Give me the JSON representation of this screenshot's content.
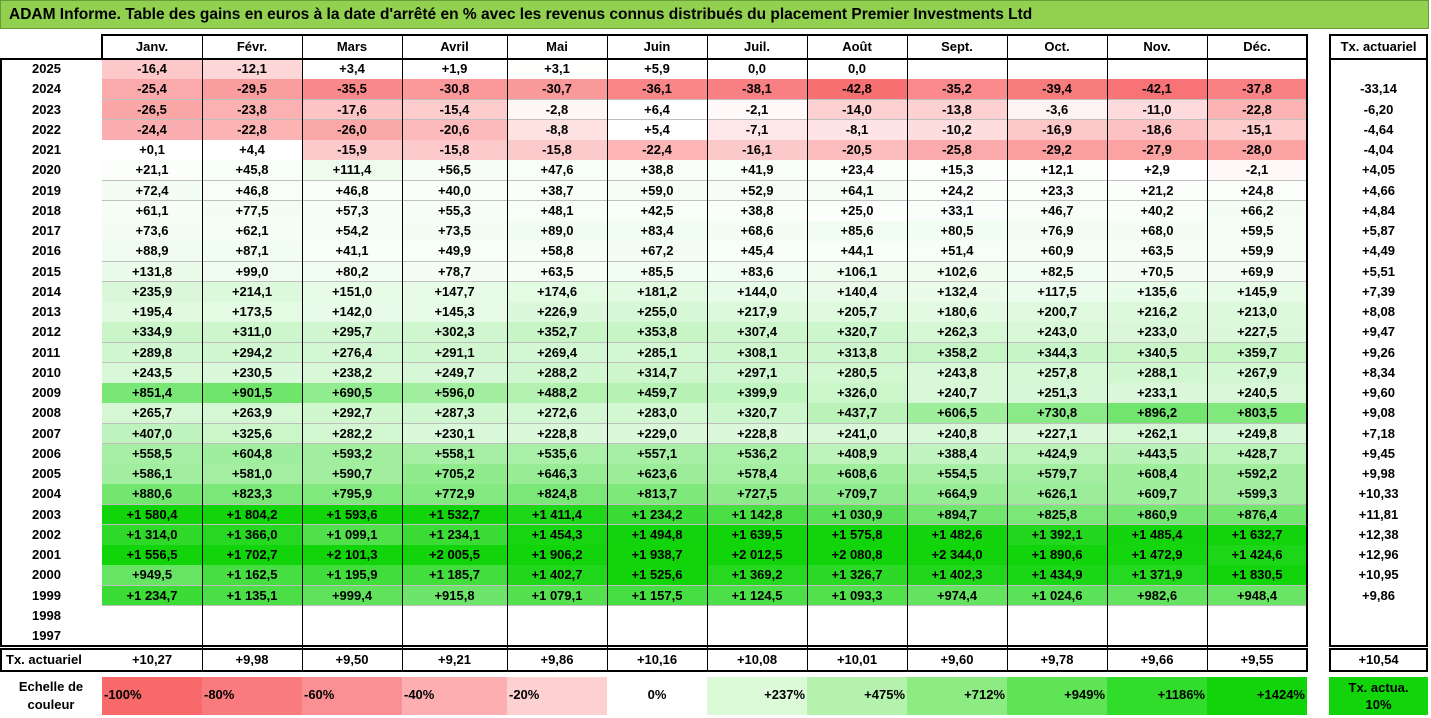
{
  "title": "ADAM Informe. Table des gains en euros à la date d'arrêté en % avec les revenus connus distribués du placement Premier Investments Ltd",
  "chart_data": {
    "type": "table",
    "columns": [
      "Janv.",
      "Févr.",
      "Mars",
      "Avril",
      "Mai",
      "Juin",
      "Juil.",
      "Août",
      "Sept.",
      "Oct.",
      "Nov.",
      "Déc."
    ],
    "rate_header": "Tx. actuariel",
    "rows": [
      {
        "year": "2025",
        "values": [
          "-16,4",
          "-12,1",
          "+3,4",
          "+1,9",
          "+3,1",
          "+5,9",
          "0,0",
          "0,0",
          "",
          "",
          "",
          ""
        ],
        "rate": ""
      },
      {
        "year": "2024",
        "values": [
          "-25,4",
          "-29,5",
          "-35,5",
          "-30,8",
          "-30,7",
          "-36,1",
          "-38,1",
          "-42,8",
          "-35,2",
          "-39,4",
          "-42,1",
          "-37,8"
        ],
        "rate": "-33,14"
      },
      {
        "year": "2023",
        "values": [
          "-26,5",
          "-23,8",
          "-17,6",
          "-15,4",
          "-2,8",
          "+6,4",
          "-2,1",
          "-14,0",
          "-13,8",
          "-3,6",
          "-11,0",
          "-22,8"
        ],
        "rate": "-6,20"
      },
      {
        "year": "2022",
        "values": [
          "-24,4",
          "-22,8",
          "-26,0",
          "-20,6",
          "-8,8",
          "+5,4",
          "-7,1",
          "-8,1",
          "-10,2",
          "-16,9",
          "-18,6",
          "-15,1"
        ],
        "rate": "-4,64"
      },
      {
        "year": "2021",
        "values": [
          "+0,1",
          "+4,4",
          "-15,9",
          "-15,8",
          "-15,8",
          "-22,4",
          "-16,1",
          "-20,5",
          "-25,8",
          "-29,2",
          "-27,9",
          "-28,0"
        ],
        "rate": "-4,04"
      },
      {
        "year": "2020",
        "values": [
          "+21,1",
          "+45,8",
          "+111,4",
          "+56,5",
          "+47,6",
          "+38,8",
          "+41,9",
          "+23,4",
          "+15,3",
          "+12,1",
          "+2,9",
          "-2,1"
        ],
        "rate": "+4,05"
      },
      {
        "year": "2019",
        "values": [
          "+72,4",
          "+46,8",
          "+46,8",
          "+40,0",
          "+38,7",
          "+59,0",
          "+52,9",
          "+64,1",
          "+24,2",
          "+23,3",
          "+21,2",
          "+24,8"
        ],
        "rate": "+4,66"
      },
      {
        "year": "2018",
        "values": [
          "+61,1",
          "+77,5",
          "+57,3",
          "+55,3",
          "+48,1",
          "+42,5",
          "+38,8",
          "+25,0",
          "+33,1",
          "+46,7",
          "+40,2",
          "+66,2"
        ],
        "rate": "+4,84"
      },
      {
        "year": "2017",
        "values": [
          "+73,6",
          "+62,1",
          "+54,2",
          "+73,5",
          "+89,0",
          "+83,4",
          "+68,6",
          "+85,6",
          "+80,5",
          "+76,9",
          "+68,0",
          "+59,5"
        ],
        "rate": "+5,87"
      },
      {
        "year": "2016",
        "values": [
          "+88,9",
          "+87,1",
          "+41,1",
          "+49,9",
          "+58,8",
          "+67,2",
          "+45,4",
          "+44,1",
          "+51,4",
          "+60,9",
          "+63,5",
          "+59,9"
        ],
        "rate": "+4,49"
      },
      {
        "year": "2015",
        "values": [
          "+131,8",
          "+99,0",
          "+80,2",
          "+78,7",
          "+63,5",
          "+85,5",
          "+83,6",
          "+106,1",
          "+102,6",
          "+82,5",
          "+70,5",
          "+69,9"
        ],
        "rate": "+5,51"
      },
      {
        "year": "2014",
        "values": [
          "+235,9",
          "+214,1",
          "+151,0",
          "+147,7",
          "+174,6",
          "+181,2",
          "+144,0",
          "+140,4",
          "+132,4",
          "+117,5",
          "+135,6",
          "+145,9"
        ],
        "rate": "+7,39"
      },
      {
        "year": "2013",
        "values": [
          "+195,4",
          "+173,5",
          "+142,0",
          "+145,3",
          "+226,9",
          "+255,0",
          "+217,9",
          "+205,7",
          "+180,6",
          "+200,7",
          "+216,2",
          "+213,0"
        ],
        "rate": "+8,08"
      },
      {
        "year": "2012",
        "values": [
          "+334,9",
          "+311,0",
          "+295,7",
          "+302,3",
          "+352,7",
          "+353,8",
          "+307,4",
          "+320,7",
          "+262,3",
          "+243,0",
          "+233,0",
          "+227,5"
        ],
        "rate": "+9,47"
      },
      {
        "year": "2011",
        "values": [
          "+289,8",
          "+294,2",
          "+276,4",
          "+291,1",
          "+269,4",
          "+285,1",
          "+308,1",
          "+313,8",
          "+358,2",
          "+344,3",
          "+340,5",
          "+359,7"
        ],
        "rate": "+9,26"
      },
      {
        "year": "2010",
        "values": [
          "+243,5",
          "+230,5",
          "+238,2",
          "+249,7",
          "+288,2",
          "+314,7",
          "+297,1",
          "+280,5",
          "+243,8",
          "+257,8",
          "+288,1",
          "+267,9"
        ],
        "rate": "+8,34"
      },
      {
        "year": "2009",
        "values": [
          "+851,4",
          "+901,5",
          "+690,5",
          "+596,0",
          "+488,2",
          "+459,7",
          "+399,9",
          "+326,0",
          "+240,7",
          "+251,3",
          "+233,1",
          "+240,5"
        ],
        "rate": "+9,60"
      },
      {
        "year": "2008",
        "values": [
          "+265,7",
          "+263,9",
          "+292,7",
          "+287,3",
          "+272,6",
          "+283,0",
          "+320,7",
          "+437,7",
          "+606,5",
          "+730,8",
          "+896,2",
          "+803,5"
        ],
        "rate": "+9,08"
      },
      {
        "year": "2007",
        "values": [
          "+407,0",
          "+325,6",
          "+282,2",
          "+230,1",
          "+228,8",
          "+229,0",
          "+228,8",
          "+241,0",
          "+240,8",
          "+227,1",
          "+262,1",
          "+249,8"
        ],
        "rate": "+7,18"
      },
      {
        "year": "2006",
        "values": [
          "+558,5",
          "+604,8",
          "+593,2",
          "+558,1",
          "+535,6",
          "+557,1",
          "+536,2",
          "+408,9",
          "+388,4",
          "+424,9",
          "+443,5",
          "+428,7"
        ],
        "rate": "+9,45"
      },
      {
        "year": "2005",
        "values": [
          "+586,1",
          "+581,0",
          "+590,7",
          "+705,2",
          "+646,3",
          "+623,6",
          "+578,4",
          "+608,6",
          "+554,5",
          "+579,7",
          "+608,4",
          "+592,2"
        ],
        "rate": "+9,98"
      },
      {
        "year": "2004",
        "values": [
          "+880,6",
          "+823,3",
          "+795,9",
          "+772,9",
          "+824,8",
          "+813,7",
          "+727,5",
          "+709,7",
          "+664,9",
          "+626,1",
          "+609,7",
          "+599,3"
        ],
        "rate": "+10,33"
      },
      {
        "year": "2003",
        "values": [
          "+1 580,4",
          "+1 804,2",
          "+1 593,6",
          "+1 532,7",
          "+1 411,4",
          "+1 234,2",
          "+1 142,8",
          "+1 030,9",
          "+894,7",
          "+825,8",
          "+860,9",
          "+876,4"
        ],
        "rate": "+11,81"
      },
      {
        "year": "2002",
        "values": [
          "+1 314,0",
          "+1 366,0",
          "+1 099,1",
          "+1 234,1",
          "+1 454,3",
          "+1 494,8",
          "+1 639,5",
          "+1 575,8",
          "+1 482,6",
          "+1 392,1",
          "+1 485,4",
          "+1 632,7"
        ],
        "rate": "+12,38"
      },
      {
        "year": "2001",
        "values": [
          "+1 556,5",
          "+1 702,7",
          "+2 101,3",
          "+2 005,5",
          "+1 906,2",
          "+1 938,7",
          "+2 012,5",
          "+2 080,8",
          "+2 344,0",
          "+1 890,6",
          "+1 472,9",
          "+1 424,6"
        ],
        "rate": "+12,96"
      },
      {
        "year": "2000",
        "values": [
          "+949,5",
          "+1 162,5",
          "+1 195,9",
          "+1 185,7",
          "+1 402,7",
          "+1 525,6",
          "+1 369,2",
          "+1 326,7",
          "+1 402,3",
          "+1 434,9",
          "+1 371,9",
          "+1 830,5"
        ],
        "rate": "+10,95"
      },
      {
        "year": "1999",
        "values": [
          "+1 234,7",
          "+1 135,1",
          "+999,4",
          "+915,8",
          "+1 079,1",
          "+1 157,5",
          "+1 124,5",
          "+1 093,3",
          "+974,4",
          "+1 024,6",
          "+982,6",
          "+948,4"
        ],
        "rate": "+9,86"
      },
      {
        "year": "1998",
        "values": [
          "",
          "",
          "",
          "",
          "",
          "",
          "",
          "",
          "",
          "",
          "",
          ""
        ],
        "rate": ""
      },
      {
        "year": "1997",
        "values": [
          "",
          "",
          "",
          "",
          "",
          "",
          "",
          "",
          "",
          "",
          "",
          ""
        ],
        "rate": ""
      }
    ],
    "summary": {
      "label": "Tx. actuariel",
      "values": [
        "+10,27",
        "+9,98",
        "+9,50",
        "+9,21",
        "+9,86",
        "+10,16",
        "+10,08",
        "+10,01",
        "+9,60",
        "+9,78",
        "+9,66",
        "+9,55"
      ],
      "rate": "+10,54"
    },
    "scale": {
      "label": "Echelle de couleur",
      "stops": [
        {
          "label": "-100%",
          "color": "#f8696b"
        },
        {
          "label": "-80%",
          "color": "#f97b7d"
        },
        {
          "label": "-60%",
          "color": "#fa9093"
        },
        {
          "label": "-40%",
          "color": "#fcaeb0"
        },
        {
          "label": "-20%",
          "color": "#fdd0d1"
        },
        {
          "label": "0%",
          "color": "#ffffff"
        },
        {
          "label": "+237%",
          "color": "#dcf9d8"
        },
        {
          "label": "+475%",
          "color": "#b4f2ad"
        },
        {
          "label": "+712%",
          "color": "#8ceb83"
        },
        {
          "label": "+949%",
          "color": "#5ee455"
        },
        {
          "label": "+1186%",
          "color": "#32dc2a"
        },
        {
          "label": "+1424%",
          "color": "#11d40b"
        }
      ],
      "reference_label": "Tx. actua. 10%",
      "reference_color": "#11d40b"
    }
  }
}
